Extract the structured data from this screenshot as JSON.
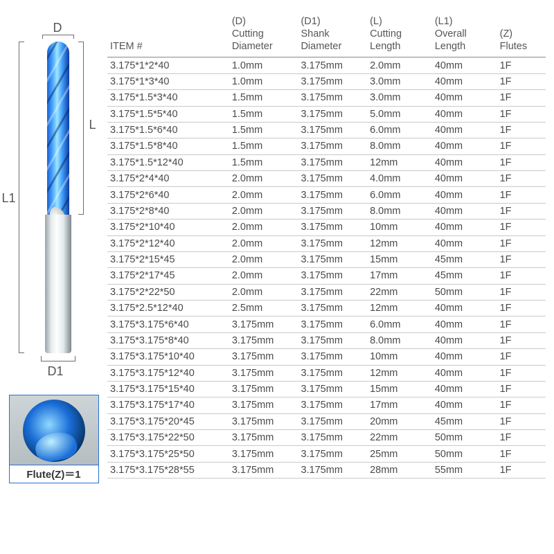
{
  "diagram": {
    "d_label": "D",
    "d1_label": "D1",
    "l_label": "L",
    "l1_label": "L1",
    "flute_caption": "Flute(Z)＝1",
    "colors": {
      "bracket": "#6c6c6c",
      "shank_gradient": [
        "#9aa4a8",
        "#e8eef0",
        "#fefefe",
        "#e2e9ec",
        "#7e888c"
      ],
      "cutting_gradient": [
        "#1a5fd4",
        "#4aa8ff",
        "#a0e4ff",
        "#4aa8ff",
        "#0a3ca8"
      ],
      "flute_border": "#2a6ed8"
    }
  },
  "table": {
    "type": "table",
    "header_fontsize": 14.5,
    "row_fontsize": 14.5,
    "text_color": "#4a4a4a",
    "header_border_color": "#888888",
    "row_border_color": "#c9c9c9",
    "columns": [
      {
        "key": "item",
        "label": "ITEM #",
        "class": "c-item"
      },
      {
        "key": "d",
        "label": "(D)\nCutting\nDiameter",
        "class": "c-d"
      },
      {
        "key": "d1",
        "label": "(D1)\nShank\nDiameter",
        "class": "c-d1"
      },
      {
        "key": "l",
        "label": "(L)\nCutting\nLength",
        "class": "c-l"
      },
      {
        "key": "l1",
        "label": "(L1)\nOverall\nLength",
        "class": "c-l1"
      },
      {
        "key": "z",
        "label": "(Z)\nFlutes",
        "class": "c-z"
      }
    ],
    "rows": [
      {
        "item": "3.175*1*2*40",
        "d": "1.0mm",
        "d1": "3.175mm",
        "l": "2.0mm",
        "l1": "40mm",
        "z": "1F"
      },
      {
        "item": "3.175*1*3*40",
        "d": "1.0mm",
        "d1": "3.175mm",
        "l": "3.0mm",
        "l1": "40mm",
        "z": "1F"
      },
      {
        "item": "3.175*1.5*3*40",
        "d": "1.5mm",
        "d1": "3.175mm",
        "l": "3.0mm",
        "l1": "40mm",
        "z": "1F"
      },
      {
        "item": "3.175*1.5*5*40",
        "d": "1.5mm",
        "d1": "3.175mm",
        "l": "5.0mm",
        "l1": "40mm",
        "z": "1F"
      },
      {
        "item": "3.175*1.5*6*40",
        "d": "1.5mm",
        "d1": "3.175mm",
        "l": "6.0mm",
        "l1": "40mm",
        "z": "1F"
      },
      {
        "item": "3.175*1.5*8*40",
        "d": "1.5mm",
        "d1": "3.175mm",
        "l": "8.0mm",
        "l1": "40mm",
        "z": "1F"
      },
      {
        "item": "3.175*1.5*12*40",
        "d": "1.5mm",
        "d1": "3.175mm",
        "l": "12mm",
        "l1": "40mm",
        "z": "1F"
      },
      {
        "item": "3.175*2*4*40",
        "d": "2.0mm",
        "d1": "3.175mm",
        "l": "4.0mm",
        "l1": "40mm",
        "z": "1F"
      },
      {
        "item": "3.175*2*6*40",
        "d": "2.0mm",
        "d1": "3.175mm",
        "l": "6.0mm",
        "l1": "40mm",
        "z": "1F"
      },
      {
        "item": "3.175*2*8*40",
        "d": "2.0mm",
        "d1": "3.175mm",
        "l": "8.0mm",
        "l1": "40mm",
        "z": "1F"
      },
      {
        "item": "3.175*2*10*40",
        "d": "2.0mm",
        "d1": "3.175mm",
        "l": "10mm",
        "l1": "40mm",
        "z": "1F"
      },
      {
        "item": "3.175*2*12*40",
        "d": "2.0mm",
        "d1": "3.175mm",
        "l": "12mm",
        "l1": "40mm",
        "z": "1F"
      },
      {
        "item": "3.175*2*15*45",
        "d": "2.0mm",
        "d1": "3.175mm",
        "l": "15mm",
        "l1": "45mm",
        "z": "1F"
      },
      {
        "item": "3.175*2*17*45",
        "d": "2.0mm",
        "d1": "3.175mm",
        "l": "17mm",
        "l1": "45mm",
        "z": "1F"
      },
      {
        "item": "3.175*2*22*50",
        "d": "2.0mm",
        "d1": "3.175mm",
        "l": "22mm",
        "l1": "50mm",
        "z": "1F"
      },
      {
        "item": "3.175*2.5*12*40",
        "d": "2.5mm",
        "d1": "3.175mm",
        "l": "12mm",
        "l1": "40mm",
        "z": "1F"
      },
      {
        "item": "3.175*3.175*6*40",
        "d": "3.175mm",
        "d1": "3.175mm",
        "l": "6.0mm",
        "l1": "40mm",
        "z": "1F"
      },
      {
        "item": "3.175*3.175*8*40",
        "d": "3.175mm",
        "d1": "3.175mm",
        "l": "8.0mm",
        "l1": "40mm",
        "z": "1F"
      },
      {
        "item": "3.175*3.175*10*40",
        "d": "3.175mm",
        "d1": "3.175mm",
        "l": "10mm",
        "l1": "40mm",
        "z": "1F"
      },
      {
        "item": "3.175*3.175*12*40",
        "d": "3.175mm",
        "d1": "3.175mm",
        "l": "12mm",
        "l1": "40mm",
        "z": "1F"
      },
      {
        "item": "3.175*3.175*15*40",
        "d": "3.175mm",
        "d1": "3.175mm",
        "l": "15mm",
        "l1": "40mm",
        "z": "1F"
      },
      {
        "item": "3.175*3.175*17*40",
        "d": "3.175mm",
        "d1": "3.175mm",
        "l": "17mm",
        "l1": "40mm",
        "z": "1F"
      },
      {
        "item": "3.175*3.175*20*45",
        "d": "3.175mm",
        "d1": "3.175mm",
        "l": "20mm",
        "l1": "45mm",
        "z": "1F"
      },
      {
        "item": "3.175*3.175*22*50",
        "d": "3.175mm",
        "d1": "3.175mm",
        "l": "22mm",
        "l1": "50mm",
        "z": "1F"
      },
      {
        "item": "3.175*3.175*25*50",
        "d": "3.175mm",
        "d1": "3.175mm",
        "l": "25mm",
        "l1": "50mm",
        "z": "1F"
      },
      {
        "item": "3.175*3.175*28*55",
        "d": "3.175mm",
        "d1": "3.175mm",
        "l": "28mm",
        "l1": "55mm",
        "z": "1F"
      }
    ]
  }
}
